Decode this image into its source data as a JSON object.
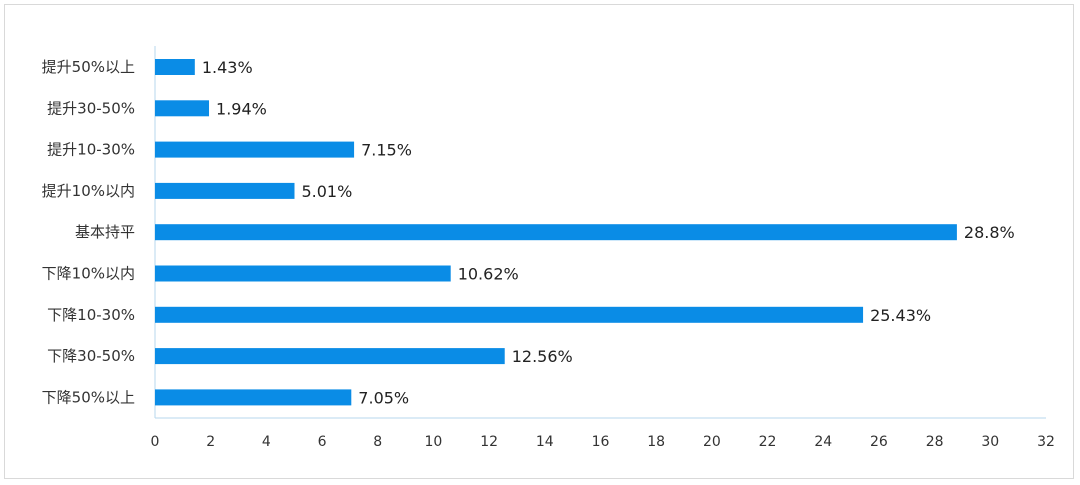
{
  "chart_data": {
    "type": "bar",
    "orientation": "horizontal",
    "categories": [
      "提升50%以上",
      "提升30-50%",
      "提升10-30%",
      "提升10%以内",
      "基本持平",
      "下降10%以内",
      "下降10-30%",
      "下降30-50%",
      "下降50%以上"
    ],
    "values": [
      1.43,
      1.94,
      7.15,
      5.01,
      28.8,
      10.62,
      25.43,
      12.56,
      7.05
    ],
    "data_labels": [
      "1.43%",
      "1.94%",
      "7.15%",
      "5.01%",
      "28.8%",
      "10.62%",
      "25.43%",
      "12.56%",
      "7.05%"
    ],
    "x_ticks": [
      "0",
      "2",
      "4",
      "6",
      "8",
      "10",
      "12",
      "14",
      "16",
      "18",
      "20",
      "22",
      "24",
      "26",
      "28",
      "30",
      "32"
    ],
    "xlim": [
      0,
      32
    ],
    "title": "",
    "xlabel": "",
    "ylabel": "",
    "grid": false,
    "legend": "none",
    "bar_color": "#0A8CE6",
    "axis_color": "#B7D7EE"
  }
}
